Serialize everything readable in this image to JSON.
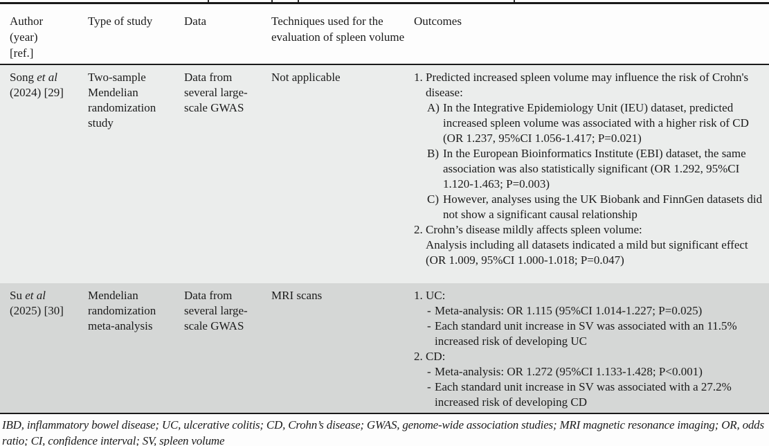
{
  "table": {
    "columns": [
      {
        "label": "Author\n(year)\n[ref.]"
      },
      {
        "label": "Type of study"
      },
      {
        "label": "Data"
      },
      {
        "label": "Techniques used for the evaluation of spleen volume"
      },
      {
        "label": "Outcomes"
      }
    ],
    "rows": [
      {
        "author_name": "Song",
        "author_etal": "et al",
        "author_yearref": "(2024) [29]",
        "study_type": "Two-sample Mendelian randomization study",
        "data": "Data from several large-scale GWAS",
        "technique": "Not applicable",
        "outcomes": [
          {
            "t": "n",
            "m": "1.",
            "x": "Predicted increased spleen volume may influence the risk of Crohn's disease:"
          },
          {
            "t": "a",
            "m": "A)",
            "x": "In the Integrative Epidemiology Unit (IEU) dataset, predicted increased spleen volume was associated with a higher risk of CD (OR 1.237, 95%CI 1.056-1.417; P=0.021)"
          },
          {
            "t": "a",
            "m": "B)",
            "x": "In the European Bioinformatics Institute (EBI) dataset, the same association was also statistically significant (OR 1.292, 95%CI 1.120-1.463; P=0.003)"
          },
          {
            "t": "a",
            "m": "C)",
            "x": "However, analyses using the UK Biobank and FinnGen datasets did not show a significant causal relationship"
          },
          {
            "t": "n",
            "m": "2.",
            "x": "Crohn’s disease mildly affects spleen volume:"
          },
          {
            "t": "c",
            "m": "",
            "x": "Analysis including all datasets indicated a mild but significant effect (OR 1.009, 95%CI 1.000-1.018; P=0.047)"
          }
        ]
      },
      {
        "author_name": "Su",
        "author_etal": "et al",
        "author_yearref": "(2025) [30]",
        "study_type": "Mendelian randomization meta-analysis",
        "data": "Data from several large-scale GWAS",
        "technique": "MRI scans",
        "outcomes": [
          {
            "t": "n",
            "m": "1.",
            "x": "UC:"
          },
          {
            "t": "d",
            "m": "-",
            "x": "Meta-analysis: OR 1.115 (95%CI 1.014-1.227; P=0.025)"
          },
          {
            "t": "d",
            "m": "-",
            "x": "Each standard unit increase in SV was associated with an 11.5% increased risk of developing UC"
          },
          {
            "t": "n",
            "m": "2.",
            "x": "CD:"
          },
          {
            "t": "d",
            "m": "-",
            "x": "Meta-analysis: OR 1.272 (95%CI 1.133-1.428; P<0.001)"
          },
          {
            "t": "d",
            "m": "-",
            "x": "Each standard unit increase in SV was associated with a 27.2% increased risk of developing CD"
          }
        ]
      }
    ],
    "footnote": "IBD, inflammatory bowel disease; UC, ulcerative colitis; CD, Crohn’s disease; GWAS, genome-wide association studies; MRI magnetic resonance imaging; OR, odds ratio; CI, confidence interval; SV, spleen volume"
  },
  "colors": {
    "row_light_bg": "#ebedec",
    "row_dark_bg": "#d5d7d6",
    "rule": "#1a1a1a",
    "text": "#1b1b1b",
    "page_bg": "#fdfdfd"
  }
}
